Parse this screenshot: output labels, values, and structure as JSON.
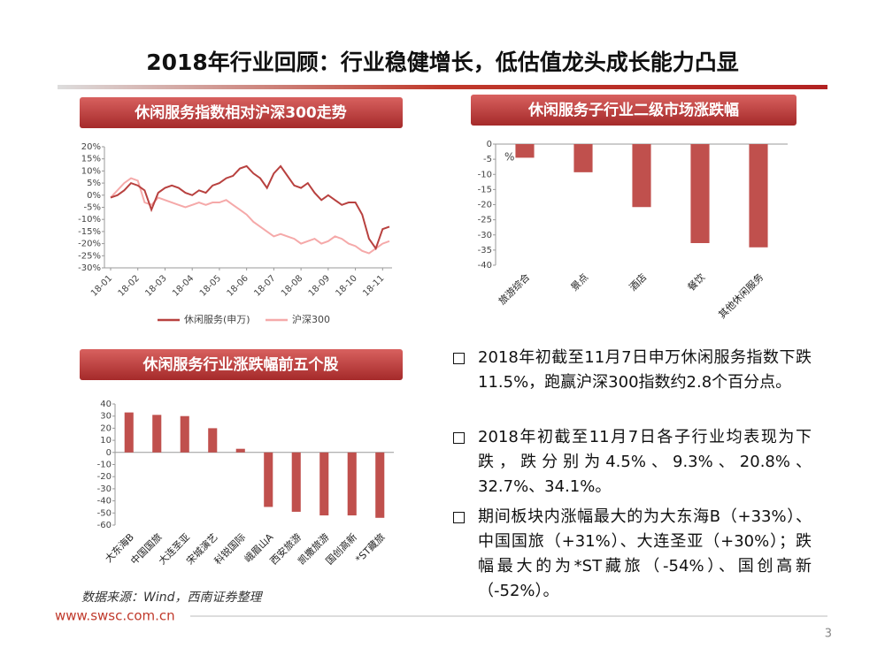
{
  "header": {
    "title": "2018年行业回顾：行业稳健增长，低估值龙头成长能力凸显"
  },
  "chart_data": [
    {
      "type": "line",
      "title": "休闲服务指数相对沪深300走势",
      "categories": [
        "18-01",
        null,
        null,
        null,
        "18-02",
        null,
        null,
        null,
        "18-03",
        null,
        null,
        null,
        "18-04",
        null,
        null,
        null,
        "18-05",
        null,
        null,
        null,
        "18-06",
        null,
        null,
        null,
        "18-07",
        null,
        null,
        null,
        "18-08",
        null,
        null,
        null,
        "18-09",
        null,
        null,
        null,
        "18-10",
        null,
        null,
        null,
        "18-11",
        null
      ],
      "series": [
        {
          "name": "休闲服务(申万)",
          "color": "#b8413f",
          "values": [
            -1,
            0,
            2,
            5,
            4,
            2,
            -6,
            1,
            3,
            4,
            3,
            1,
            0,
            2,
            1,
            4,
            5,
            7,
            8,
            11,
            12,
            9,
            7,
            3,
            9,
            12,
            8,
            4,
            3,
            5,
            1,
            -2,
            0,
            -2,
            -4,
            -3,
            -3,
            -8,
            -18,
            -22,
            -14,
            -13
          ]
        },
        {
          "name": "沪深300",
          "color": "#f5a9a9",
          "values": [
            -1,
            2,
            5,
            7,
            6,
            -3,
            -4,
            -1,
            -2,
            -3,
            -4,
            -5,
            -4,
            -3,
            -4,
            -3,
            -3,
            -2,
            -4,
            -6,
            -8,
            -11,
            -13,
            -15,
            -17,
            -16,
            -17,
            -18,
            -20,
            -19,
            -18,
            -20,
            -19,
            -17,
            -18,
            -20,
            -21,
            -23,
            -24,
            -22,
            -20,
            -19
          ]
        }
      ],
      "ylim": [
        -30,
        20
      ],
      "yticks": [
        {
          "value": 20,
          "label": "20%"
        },
        {
          "value": 15,
          "label": "15%"
        },
        {
          "value": 10,
          "label": "10%"
        },
        {
          "value": 5,
          "label": "5%"
        },
        {
          "value": 0,
          "label": "0%"
        },
        {
          "value": -5,
          "label": "-5%"
        },
        {
          "value": -10,
          "label": "-10%"
        },
        {
          "value": -15,
          "label": "-15%"
        },
        {
          "value": -20,
          "label": "-20%"
        },
        {
          "value": -25,
          "label": "-25%"
        },
        {
          "value": -30,
          "label": "-30%"
        }
      ]
    },
    {
      "type": "bar",
      "title": "休闲服务子行业二级市场涨跌幅",
      "annotation": "%",
      "categories": [
        "旅游综合",
        "景点",
        "酒店",
        "餐饮",
        "其他休闲服务"
      ],
      "values": [
        -4.5,
        -9.3,
        -20.8,
        -32.7,
        -34.1
      ],
      "color": "#c0504d",
      "ylim": [
        -40,
        0
      ],
      "yticks": [
        0,
        -5,
        -10,
        -15,
        -20,
        -25,
        -30,
        -35,
        -40
      ]
    },
    {
      "type": "bar",
      "title": "休闲服务行业涨跌幅前五个股",
      "categories": [
        "大东海B",
        "中国国旅",
        "大连圣亚",
        "宋城演艺",
        "科锐国际",
        "峨眉山A",
        "西安旅游",
        "凯撒旅游",
        "国创高新",
        "*ST藏旅"
      ],
      "values": [
        33,
        31,
        30,
        20,
        3,
        -45,
        -49,
        -52,
        -52,
        -54
      ],
      "color": "#c0504d",
      "ylim": [
        -60,
        40
      ],
      "yticks": [
        40,
        30,
        20,
        10,
        0,
        -10,
        -20,
        -30,
        -40,
        -50,
        -60
      ]
    }
  ],
  "bullets": [
    "2018年初截至11月7日申万休闲服务指数下跌11.5%，跑赢沪深300指数约2.8个百分点。",
    "2018年初截至11月7日各子行业均表现为下跌，跌分别为4.5%、9.3%、20.8%、32.7%、34.1%。",
    "期间板块内涨幅最大的为大东海B（+33%）、中国国旅（+31%）、大连圣亚（+30%）；跌幅最大的为*ST藏旅（-54%）、国创高新（-52%）。"
  ],
  "source": "数据来源：Wind，西南证券整理",
  "footer": {
    "url": "www.swsc.com.cn",
    "page": "3"
  }
}
